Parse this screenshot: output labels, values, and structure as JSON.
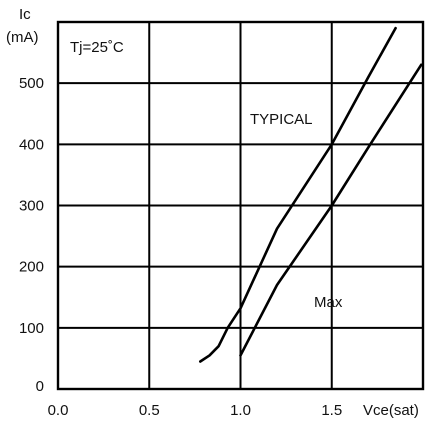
{
  "chart_data": {
    "type": "line",
    "ylabel_line1": "Ic",
    "ylabel_line2": "(mA)",
    "xlabel": "Vce(sat)",
    "condition": "Tj=25˚C",
    "xlim": [
      0.0,
      2.0
    ],
    "ylim": [
      0,
      600
    ],
    "xticks": [
      "0.0",
      "0.5",
      "1.0",
      "1.5"
    ],
    "yticks": [
      "0",
      "100",
      "200",
      "300",
      "400",
      "500"
    ],
    "grid": true,
    "series": [
      {
        "name": "TYPICAL",
        "x": [
          0.78,
          0.83,
          0.88,
          0.93,
          1.0,
          1.2,
          1.5,
          1.7,
          1.85
        ],
        "y": [
          45,
          55,
          70,
          100,
          132,
          262,
          400,
          510,
          590
        ]
      },
      {
        "name": "Max",
        "x": [
          1.0,
          1.2,
          1.5,
          1.7,
          1.99
        ],
        "y": [
          55,
          170,
          300,
          395,
          530
        ]
      }
    ]
  }
}
